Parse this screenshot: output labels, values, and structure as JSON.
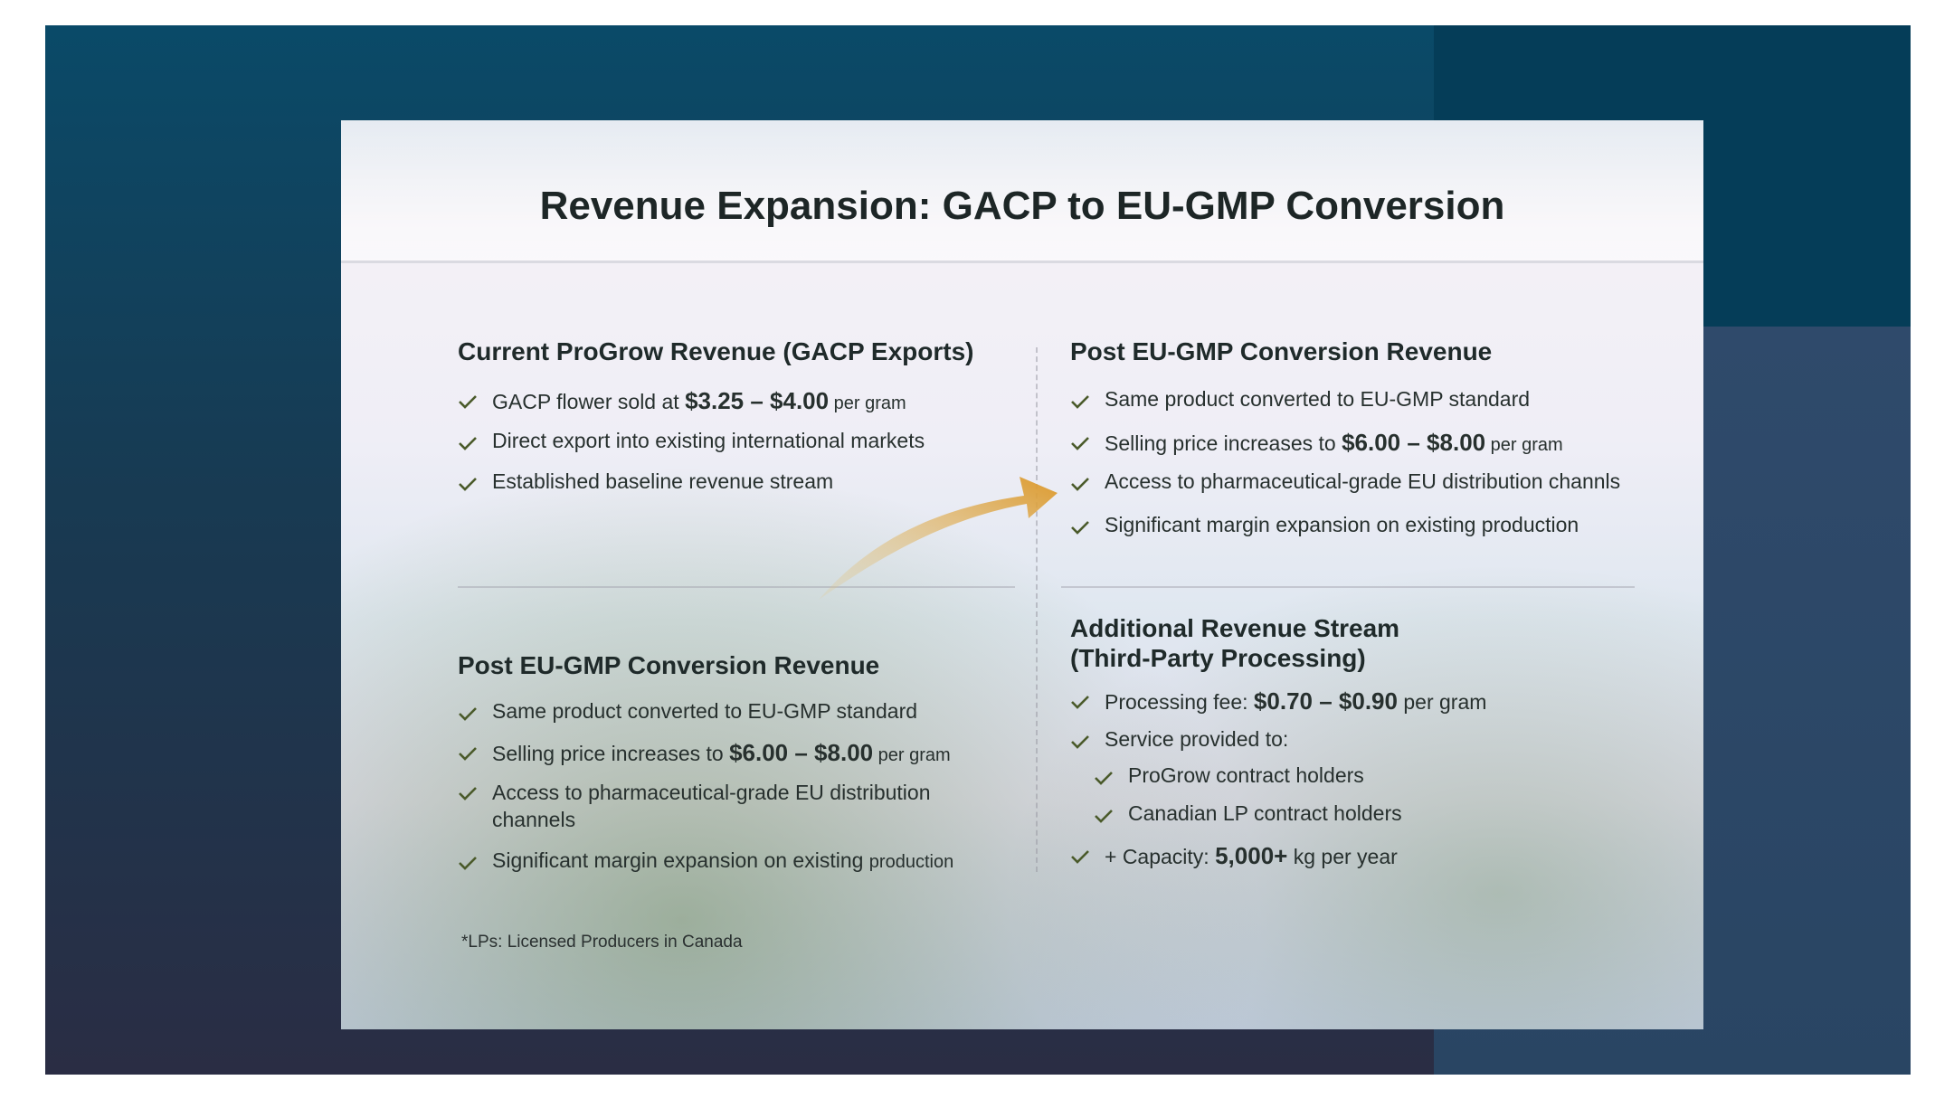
{
  "title": "Revenue Expansion: GACP to EU-GMP Conversion",
  "sections": [
    {
      "heading": [
        "Current ProGrow Revenue (GACP Exports)"
      ],
      "items": [
        {
          "parts": [
            {
              "text": "GACP flower sold at "
            },
            {
              "text": "$3.25 – $4.00",
              "bold": true
            },
            {
              "text": " per gram",
              "small": true
            }
          ]
        },
        {
          "parts": [
            {
              "text": "Direct export into existing international markets"
            }
          ]
        },
        {
          "parts": [
            {
              "text": "Established baseline revenue stream"
            }
          ]
        }
      ]
    },
    {
      "heading": [
        "Post EU-GMP Conversion Revenue"
      ],
      "items": [
        {
          "parts": [
            {
              "text": "Same product converted to EU-GMP standard"
            }
          ]
        },
        {
          "parts": [
            {
              "text": "Selling price increases to "
            },
            {
              "text": "$6.00 – $8.00",
              "bold": true
            },
            {
              "text": " per gram",
              "small": true
            }
          ]
        },
        {
          "parts": [
            {
              "text": "Access to pharmaceutical-grade EU distribution channls"
            }
          ]
        },
        {
          "parts": [
            {
              "text": "Significant margin expansion on existing production"
            }
          ]
        }
      ]
    },
    {
      "heading": [
        "Post EU-GMP Conversion Revenue"
      ],
      "items": [
        {
          "parts": [
            {
              "text": "Same product converted to EU-GMP standard"
            }
          ]
        },
        {
          "parts": [
            {
              "text": "Selling price increases to "
            },
            {
              "text": "$6.00 – $8.00",
              "bold": true
            },
            {
              "text": " per gram",
              "small": true
            }
          ]
        },
        {
          "parts": [
            {
              "text": "Access to pharmaceutical-grade EU distribution channels"
            }
          ]
        },
        {
          "parts": [
            {
              "text": "Significant margin expansion on existing "
            },
            {
              "text": "production",
              "small": true
            }
          ]
        }
      ]
    },
    {
      "heading": [
        "Additional Revenue Stream",
        "(Third-Party Processing)"
      ],
      "items": [
        {
          "parts": [
            {
              "text": "Processing fee: "
            },
            {
              "text": "$0.70 – $0.90",
              "bold": true
            },
            {
              "text": " per gram"
            }
          ]
        },
        {
          "parts": [
            {
              "text": "Service provided to:"
            }
          ]
        },
        {
          "parts": [
            {
              "text": "ProGrow contract holders"
            }
          ],
          "indent": true
        },
        {
          "parts": [
            {
              "text": "Canadian LP contract holders"
            }
          ],
          "indent": true
        },
        {
          "parts": [
            {
              "text": "+ Capacity: "
            },
            {
              "text": "5,000+",
              "bold": true
            },
            {
              "text": " kg per year"
            }
          ]
        }
      ]
    }
  ],
  "footnote": "*LPs: Licensed Producers in Canada"
}
